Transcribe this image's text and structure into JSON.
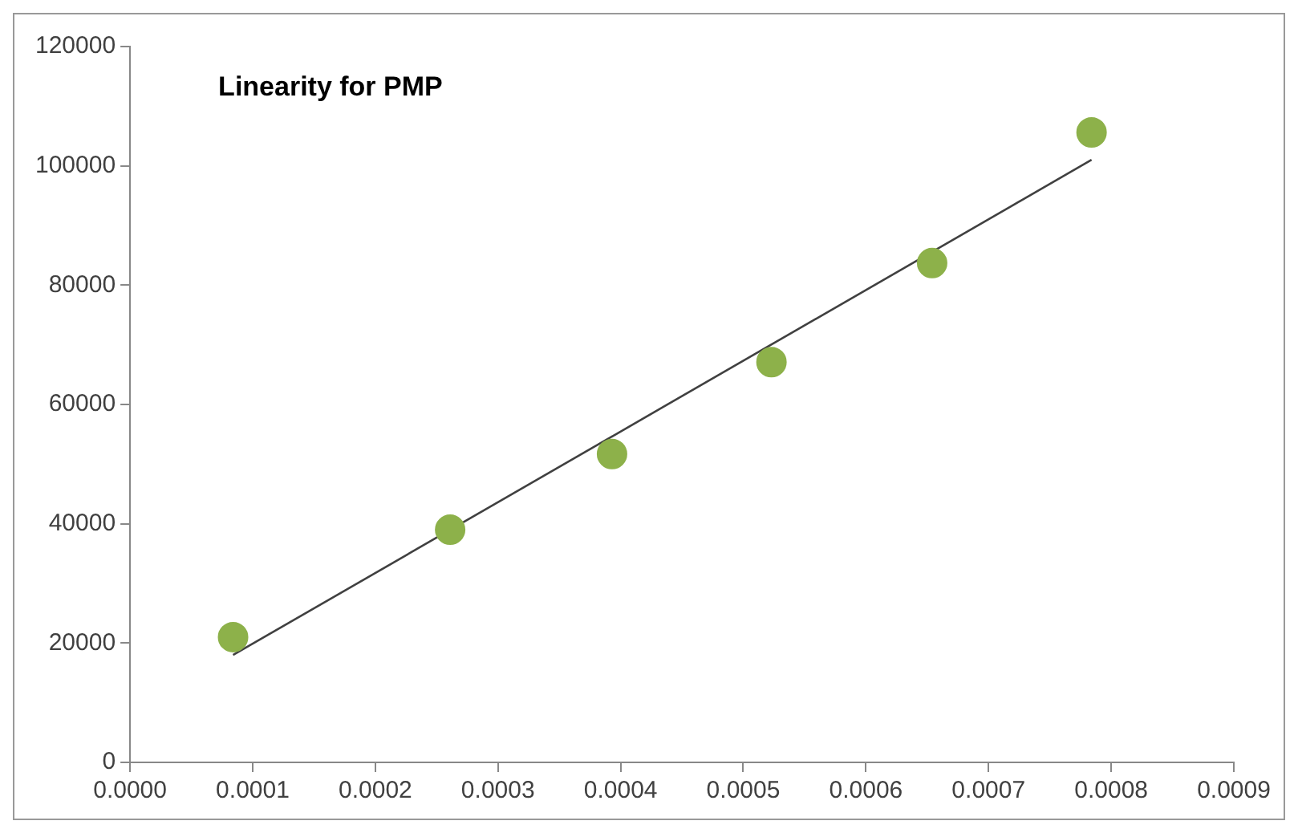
{
  "chart_data": {
    "type": "scatter",
    "title": "Linearity for PMP",
    "series": [
      {
        "marker": "circle",
        "color": "#8db14a",
        "x": [
          8.4e-05,
          0.000261,
          0.000393,
          0.000523,
          0.000654,
          0.000784
        ],
        "values": [
          21000,
          39000,
          51700,
          67100,
          83700,
          105600
        ]
      },
      {
        "type": "line",
        "color": "#404040",
        "x": [
          8.4e-05,
          0.000784
        ],
        "values": [
          18000,
          101000
        ]
      }
    ],
    "xlim": [
      0,
      0.0009
    ],
    "xticks": [
      {
        "value": 0,
        "label": "0.0000"
      },
      {
        "value": 0.0001,
        "label": "0.0001"
      },
      {
        "value": 0.0002,
        "label": "0.0002"
      },
      {
        "value": 0.0003,
        "label": "0.0003"
      },
      {
        "value": 0.0004,
        "label": "0.0004"
      },
      {
        "value": 0.0005,
        "label": "0.0005"
      },
      {
        "value": 0.0006,
        "label": "0.0006"
      },
      {
        "value": 0.0007,
        "label": "0.0007"
      },
      {
        "value": 0.0008,
        "label": "0.0008"
      },
      {
        "value": 0.0009,
        "label": "0.0009"
      }
    ],
    "ylim": [
      0,
      120000
    ],
    "yticks": [
      0,
      20000,
      40000,
      60000,
      80000,
      100000,
      120000
    ],
    "grid": false,
    "legend": false
  }
}
